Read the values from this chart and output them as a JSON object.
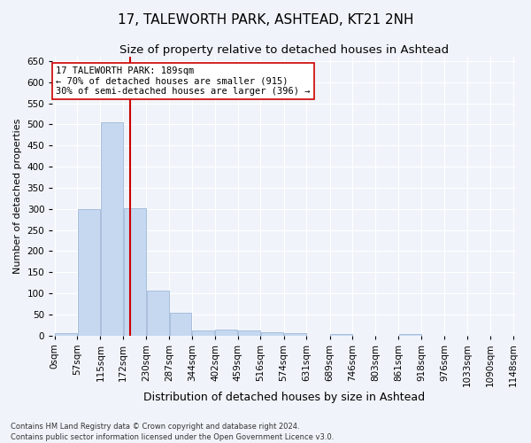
{
  "title": "17, TALEWORTH PARK, ASHTEAD, KT21 2NH",
  "subtitle": "Size of property relative to detached houses in Ashtead",
  "xlabel": "Distribution of detached houses by size in Ashtead",
  "ylabel": "Number of detached properties",
  "footer": "Contains HM Land Registry data © Crown copyright and database right 2024.\nContains public sector information licensed under the Open Government Licence v3.0.",
  "bin_edges": [
    0,
    57,
    115,
    172,
    230,
    287,
    344,
    402,
    459,
    516,
    574,
    631,
    689,
    746,
    803,
    861,
    918,
    976,
    1033,
    1090,
    1148
  ],
  "bar_heights": [
    5,
    300,
    506,
    302,
    107,
    53,
    12,
    14,
    12,
    7,
    5,
    0,
    4,
    0,
    0,
    3,
    0,
    0,
    0,
    0
  ],
  "bar_color": "#c5d8f0",
  "bar_edgecolor": "#a0b8d8",
  "vline_x": 189,
  "vline_color": "#cc0000",
  "ylim": [
    0,
    660
  ],
  "yticks": [
    0,
    50,
    100,
    150,
    200,
    250,
    300,
    350,
    400,
    450,
    500,
    550,
    600,
    650
  ],
  "annotation_text": "17 TALEWORTH PARK: 189sqm\n← 70% of detached houses are smaller (915)\n30% of semi-detached houses are larger (396) →",
  "annotation_box_color": "#ffffff",
  "annotation_box_edgecolor": "#cc0000",
  "background_color": "#f0f4fa",
  "grid_color": "#ffffff",
  "tick_label_fontsize": 7.5,
  "title_fontsize": 11,
  "subtitle_fontsize": 9.5,
  "xlabel_fontsize": 9,
  "ylabel_fontsize": 8,
  "annotation_fontsize": 7.5,
  "footer_fontsize": 6
}
